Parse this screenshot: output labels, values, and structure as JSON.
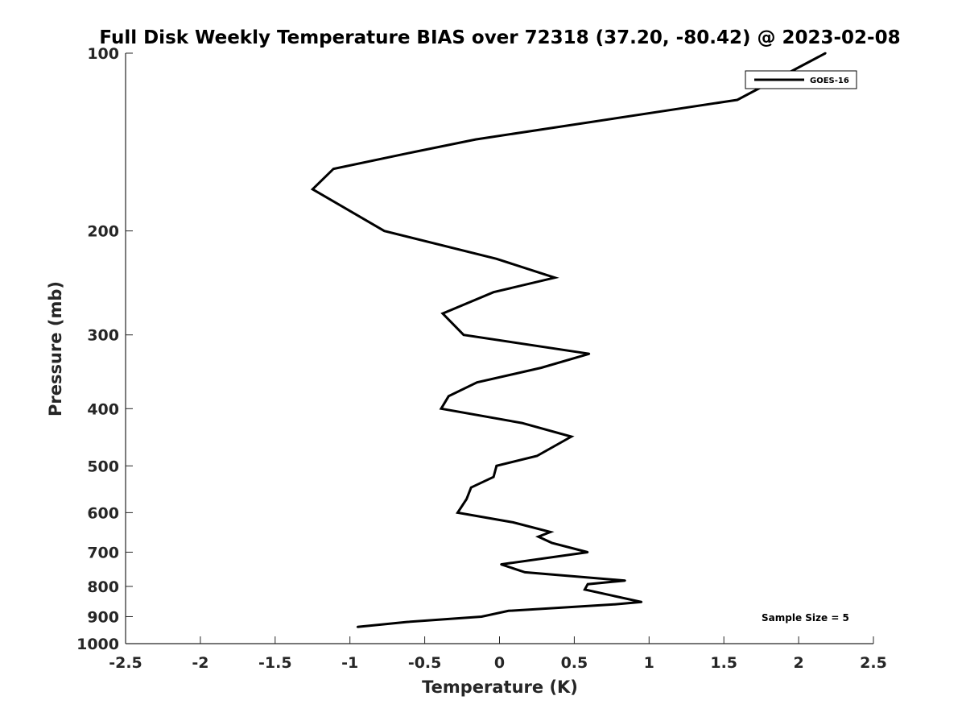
{
  "chart_data": {
    "type": "line",
    "title": "Full Disk Weekly Temperature BIAS over 72318 (37.20, -80.42) @ 2023-02-08",
    "xlabel": "Temperature (K)",
    "ylabel": "Pressure (mb)",
    "xlim": [
      -2.5,
      2.5
    ],
    "ylim": [
      100,
      1000
    ],
    "y_scale": "log",
    "y_direction": "reversed",
    "x_ticks": [
      -2.5,
      -2,
      -1.5,
      -1,
      -0.5,
      0,
      0.5,
      1,
      1.5,
      2,
      2.5
    ],
    "x_tick_labels": [
      "-2.5",
      "-2",
      "-1.5",
      "-1",
      "-0.5",
      "0",
      "0.5",
      "1",
      "1.5",
      "2",
      "2.5"
    ],
    "y_ticks": [
      100,
      200,
      300,
      400,
      500,
      600,
      700,
      800,
      900,
      1000
    ],
    "y_tick_labels": [
      "100",
      "200",
      "300",
      "400",
      "500",
      "600",
      "700",
      "800",
      "900",
      "1000"
    ],
    "grid": false,
    "legend": {
      "position": "top-right",
      "entries": [
        "GOES-16"
      ]
    },
    "annotation": "Sample Size = 5",
    "series": [
      {
        "name": "GOES-16",
        "color": "#000000",
        "points": [
          [
            2.18,
            100
          ],
          [
            1.59,
            120
          ],
          [
            -0.16,
            140
          ],
          [
            -0.57,
            147
          ],
          [
            -1.11,
            157
          ],
          [
            -1.25,
            170
          ],
          [
            -0.77,
            200
          ],
          [
            -0.02,
            223
          ],
          [
            0.37,
            240
          ],
          [
            -0.04,
            254
          ],
          [
            -0.38,
            276
          ],
          [
            -0.24,
            300
          ],
          [
            0.6,
            323
          ],
          [
            0.28,
            341
          ],
          [
            -0.15,
            361
          ],
          [
            -0.34,
            381
          ],
          [
            -0.39,
            400
          ],
          [
            0.15,
            423
          ],
          [
            0.48,
            446
          ],
          [
            0.25,
            481
          ],
          [
            -0.02,
            500
          ],
          [
            -0.04,
            522
          ],
          [
            -0.19,
            544
          ],
          [
            -0.22,
            569
          ],
          [
            -0.28,
            600
          ],
          [
            0.09,
            623
          ],
          [
            0.34,
            647
          ],
          [
            0.26,
            659
          ],
          [
            0.35,
            675
          ],
          [
            0.59,
            700
          ],
          [
            0.01,
            734
          ],
          [
            0.17,
            757
          ],
          [
            0.84,
            782
          ],
          [
            0.59,
            793
          ],
          [
            0.57,
            810
          ],
          [
            0.95,
            850
          ],
          [
            0.77,
            858
          ],
          [
            0.06,
            880
          ],
          [
            -0.12,
            900
          ],
          [
            -0.62,
            919
          ],
          [
            -0.95,
            937
          ]
        ]
      }
    ]
  }
}
